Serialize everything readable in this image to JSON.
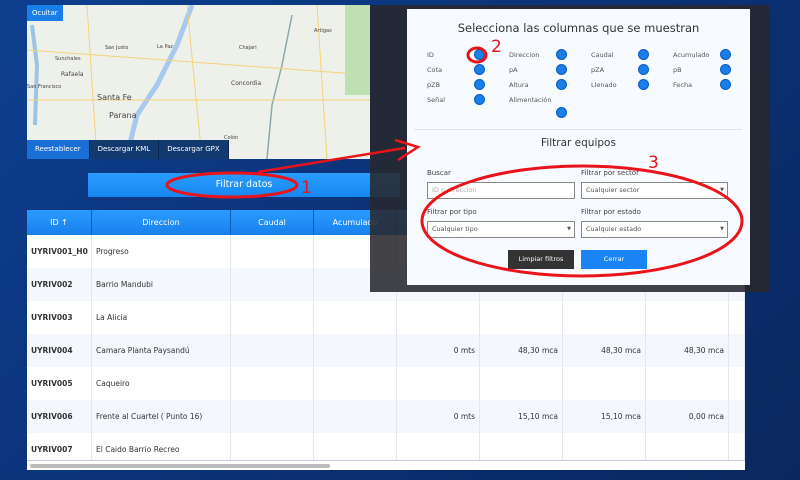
{
  "map": {
    "hide_label": "Ocultar",
    "places": [
      "Santa Fe",
      "Parana",
      "Rafaela",
      "San Justo",
      "Sunchales",
      "La Paz",
      "Concordia",
      "Chajari",
      "Artigas",
      "Colón",
      "San Francisco"
    ],
    "buttons": [
      "Reestablecer",
      "Descargar KML",
      "Descargar GPX"
    ]
  },
  "filter_button": "Filtrar datos",
  "table": {
    "headers": [
      "ID ↑",
      "Direccion",
      "Caudal",
      "Acumulado",
      "",
      "",
      "",
      "",
      ""
    ],
    "rows": [
      [
        "UYRIV001_H0",
        "Progreso",
        "",
        "",
        "",
        "",
        "",
        "",
        ""
      ],
      [
        "UYRIV002",
        "Barrio Mandubi",
        "",
        "",
        "",
        "",
        "",
        "",
        ""
      ],
      [
        "UYRIV003",
        "La Alicia",
        "",
        "",
        "",
        "",
        "",
        "",
        ""
      ],
      [
        "UYRIV004",
        "Camara Planta Paysandú",
        "",
        "",
        "0 mts",
        "48,30 mca",
        "48,30 mca",
        "48,30 mca",
        ""
      ],
      [
        "UYRIV005",
        "Caqueiro",
        "",
        "",
        "",
        "",
        "",
        "",
        ""
      ],
      [
        "UYRIV006",
        "Frente al Cuartel ( Punto 16)",
        "",
        "",
        "0 mts",
        "15,10 mca",
        "15,10 mca",
        "0,00 mca",
        ""
      ],
      [
        "UYRIV007",
        "El Caido Barrio Recreo",
        "",
        "",
        "",
        "",
        "",
        "",
        ""
      ]
    ]
  },
  "modal": {
    "columns_title": "Selecciona las columnas que se muestran",
    "columns": [
      "ID",
      "Direccion",
      "Caudal",
      "Acumulado",
      "Cota",
      "pA",
      "pZA",
      "pB",
      "pZB",
      "Altura",
      "Llenado",
      "Fecha",
      "Señal",
      "Alimentación"
    ],
    "filter_title": "Filtrar equipos",
    "search_label": "Buscar",
    "search_placeholder": "ID o direccion",
    "sector_label": "Filtrar por sector",
    "sector_value": "Cualquier sector",
    "type_label": "Filtrar por tipo",
    "type_value": "Cualquier tipo",
    "state_label": "Filtrar por estado",
    "state_value": "Cualquier estado",
    "clear_button": "Limpiar filtros",
    "close_button": "Cerrar"
  },
  "annotations": [
    "1",
    "2",
    "3"
  ],
  "colors": {
    "accent": "#1a7ee8",
    "annotation": "#e8141a",
    "background": "#0d3f8f"
  }
}
